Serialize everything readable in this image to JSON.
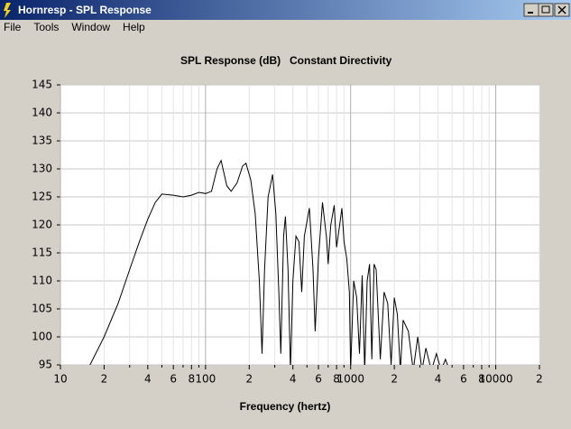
{
  "window": {
    "title": "Hornresp - SPL Response",
    "menu": [
      "File",
      "Tools",
      "Window",
      "Help"
    ]
  },
  "chart_data": {
    "type": "line",
    "title": "SPL Response (dB)",
    "subtitle": "Constant Directivity",
    "xlabel": "Frequency (hertz)",
    "xscale": "log",
    "grid": true,
    "color": "#000000",
    "x": [
      16,
      20,
      25,
      30,
      35,
      40,
      45,
      50,
      60,
      70,
      80,
      90,
      100,
      110,
      120,
      128,
      140,
      150,
      165,
      180,
      190,
      205,
      220,
      235,
      245,
      255,
      270,
      290,
      305,
      320,
      330,
      345,
      355,
      370,
      385,
      400,
      420,
      440,
      460,
      480,
      520,
      550,
      570,
      600,
      640,
      680,
      700,
      730,
      770,
      800,
      830,
      870,
      900,
      940,
      980,
      1000,
      1050,
      1100,
      1150,
      1200,
      1250,
      1300,
      1350,
      1400,
      1450,
      1500,
      1600,
      1700,
      1800,
      1900,
      2000,
      2100,
      2200,
      2300,
      2500,
      2700,
      2900,
      3100,
      3300,
      3600,
      3900,
      4200,
      4500,
      4800,
      5000
    ],
    "values": [
      95,
      100,
      106,
      112,
      117,
      121,
      124,
      125.5,
      125.3,
      125,
      125.3,
      125.8,
      125.6,
      126,
      130,
      131.5,
      127,
      126,
      127.5,
      130.5,
      131,
      128,
      122,
      110,
      97,
      112,
      125,
      129,
      122,
      108,
      97,
      118,
      121.5,
      112,
      94,
      110,
      118,
      117,
      108,
      118,
      123,
      112,
      101,
      114,
      124,
      118,
      113,
      120,
      123.5,
      116,
      119,
      123,
      117,
      114,
      108,
      94,
      110,
      107,
      97,
      111,
      94,
      110,
      113,
      96,
      113,
      112,
      96,
      108,
      106,
      95,
      107,
      104,
      94,
      103,
      101,
      94,
      100,
      94,
      98,
      94,
      97,
      94,
      96,
      94,
      93
    ],
    "xlim": [
      10,
      20000
    ],
    "xticks": [
      10,
      {
        "value": 20,
        "label": "2"
      },
      {
        "value": 40,
        "label": "4"
      },
      {
        "value": 60,
        "label": "6"
      },
      {
        "value": 80,
        "label": "8"
      },
      100,
      {
        "value": 200,
        "label": "2"
      },
      {
        "value": 400,
        "label": "4"
      },
      {
        "value": 600,
        "label": "6"
      },
      {
        "value": 800,
        "label": "8"
      },
      1000,
      {
        "value": 2000,
        "label": "2"
      },
      {
        "value": 4000,
        "label": "4"
      },
      {
        "value": 6000,
        "label": "6"
      },
      {
        "value": 8000,
        "label": "8"
      },
      10000,
      {
        "value": 20000,
        "label": "2"
      }
    ],
    "xminorticks": [
      30,
      50,
      70,
      90,
      300,
      500,
      700,
      900,
      3000,
      5000,
      7000,
      9000
    ],
    "ylim": [
      95,
      145
    ],
    "yticks": [
      95,
      100,
      105,
      110,
      115,
      120,
      125,
      130,
      135,
      140,
      145
    ]
  }
}
